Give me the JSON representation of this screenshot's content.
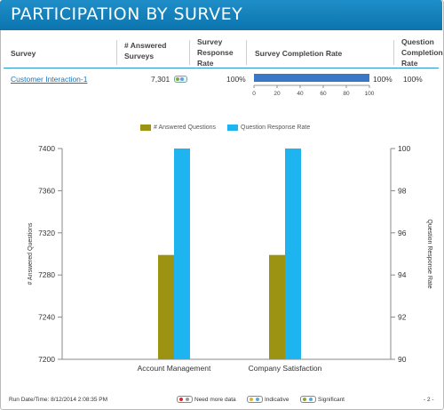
{
  "header": {
    "title": "PARTICIPATION BY SURVEY"
  },
  "table": {
    "columns": {
      "survey": "Survey",
      "answered": "# Answered Surveys",
      "response_rate": "Survey Response Rate",
      "completion_rate": "Survey Completion Rate",
      "q_completion_rate": "Question Completion Rate"
    },
    "row": {
      "survey": "Customer Interaction-1",
      "answered": "7,301",
      "response_rate": "100%",
      "completion_value": 100,
      "completion_label": "100%",
      "q_completion_rate": "100%"
    },
    "completion_axis_ticks": [
      "0",
      "20",
      "40",
      "60",
      "80",
      "100"
    ]
  },
  "colors": {
    "header": "#1479b5",
    "answered_questions": "#9b9311",
    "question_response_rate": "#1eb4f0",
    "completion_bar": "#3a77c4"
  },
  "chart_data": {
    "type": "bar",
    "categories": [
      "Account Management",
      "Company Satisfaction"
    ],
    "series": [
      {
        "name": "# Answered Questions",
        "axis": "left",
        "values": [
          7299,
          7299
        ]
      },
      {
        "name": "Question Response Rate",
        "axis": "right",
        "values": [
          100,
          100
        ]
      }
    ],
    "ylabel": "# Answered Questions",
    "y2label": "Question Response Rate",
    "ylim": [
      7200,
      7400
    ],
    "y2lim": [
      90,
      100
    ],
    "yticks": [
      "7200",
      "7240",
      "7280",
      "7320",
      "7360",
      "7400"
    ],
    "y2ticks": [
      "90",
      "92",
      "94",
      "96",
      "98",
      "100"
    ],
    "legend_position": "top-center",
    "grid": false
  },
  "footer": {
    "run_date": "Run Date/Time: 8/12/2014 2:08:35 PM",
    "need_more_data": "Need more data",
    "indicative": "Indicative",
    "significant": "Significant",
    "page": "- 2 -"
  }
}
